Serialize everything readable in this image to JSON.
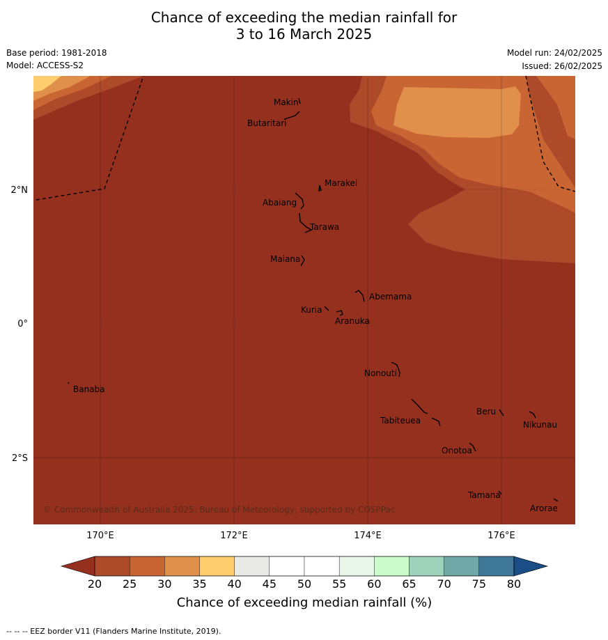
{
  "title": {
    "line1": "Chance of exceeding the median rainfall for",
    "line2": "3 to 16 March 2025"
  },
  "meta": {
    "base_period": "Base period: 1981-2018",
    "model": "Model: ACCESS-S2",
    "model_run": "Model run: 24/02/2025",
    "issued": "Issued: 26/02/2025"
  },
  "map": {
    "longitude_ticks": [
      "170°E",
      "172°E",
      "174°E",
      "176°E"
    ],
    "latitude_ticks": [
      "2°N",
      "0°",
      "2°S"
    ],
    "places": [
      "Makin",
      "Butaritari",
      "Marakei",
      "Abaiang",
      "Tarawa",
      "Maiana",
      "Abemama",
      "Kuria",
      "Aranuka",
      "Nonouti",
      "Banaba",
      "Beru",
      "Nikunau",
      "Tabiteuea",
      "Onotoa",
      "Tamana",
      "Arorae"
    ],
    "credit": "© Commonwealth of Australia 2025, Bureau of Meteorology, supported by COSPPac",
    "fill_colors": {
      "lt20": "#95301f",
      "c20_25": "#ad4a2a",
      "c25_30": "#c96433",
      "c30_35": "#e0904a",
      "c35_40": "#fdcd6e"
    }
  },
  "colorbar": {
    "ticks": [
      "20",
      "25",
      "30",
      "35",
      "40",
      "45",
      "50",
      "55",
      "60",
      "65",
      "70",
      "75",
      "80"
    ],
    "bins": [
      "#ad4a2a",
      "#c96433",
      "#e0904a",
      "#fdcd6e",
      "#e9e9e7",
      "#ffffff",
      "#ffffff",
      "#eaf6ea",
      "#ccfccb",
      "#9ed2bb",
      "#6fa8a6",
      "#3f7898"
    ],
    "under_color": "#95301f",
    "over_color": "#1b4d86",
    "label": "Chance of exceeding median rainfall (%)"
  },
  "footer": "--  --  -- EEZ border V11 (Flanders Marine Institute, 2019)."
}
